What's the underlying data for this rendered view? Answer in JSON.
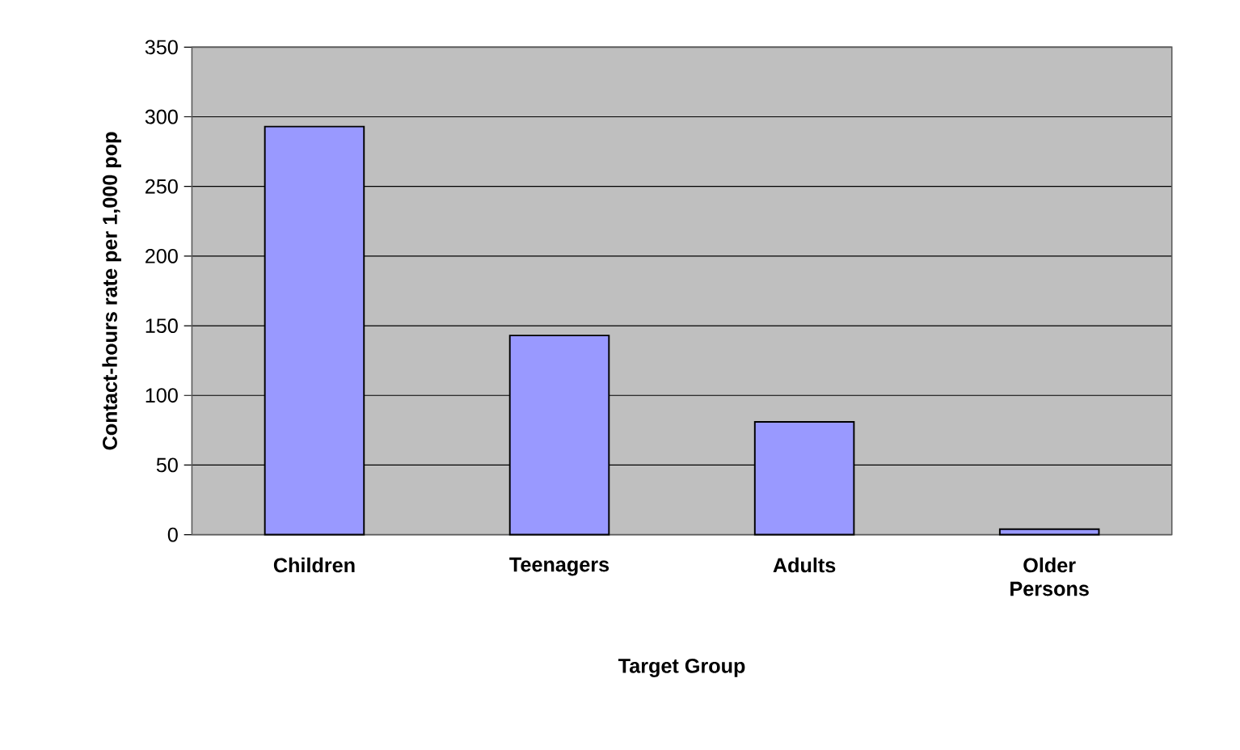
{
  "chart_data": {
    "type": "bar",
    "xlabel": "Target Group",
    "ylabel": "Contact-hours rate per 1,000 pop",
    "categories": [
      "Children",
      "Teenagers",
      "Adults",
      "Older Persons"
    ],
    "values": [
      293,
      143,
      81,
      4
    ],
    "color": "#9999ff",
    "ylim": [
      0,
      350
    ],
    "yticks": [
      0,
      50,
      100,
      150,
      200,
      250,
      300,
      350
    ],
    "grid": "y"
  }
}
